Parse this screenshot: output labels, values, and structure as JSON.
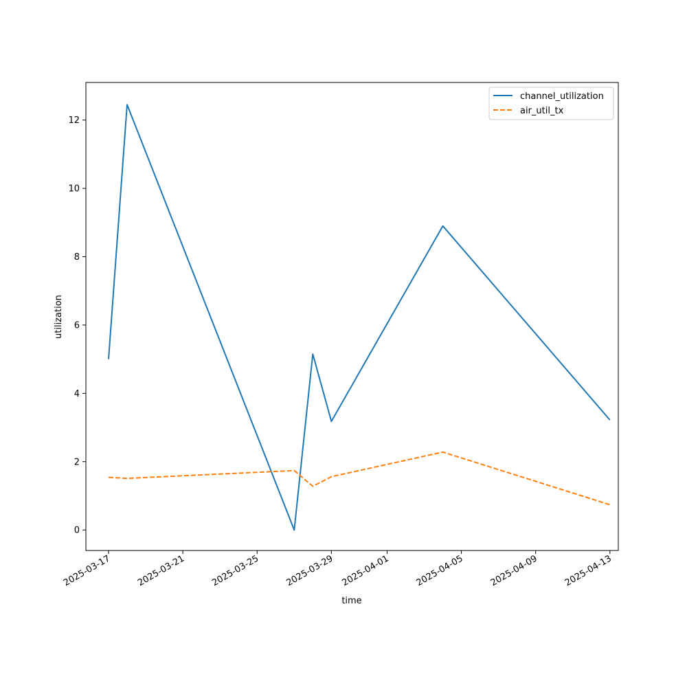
{
  "chart_data": {
    "type": "line",
    "title": "",
    "xlabel": "time",
    "ylabel": "utilization",
    "x_ticks": [
      "2025-03-17",
      "2025-03-21",
      "2025-03-25",
      "2025-03-29",
      "2025-04-01",
      "2025-04-05",
      "2025-04-09",
      "2025-04-13"
    ],
    "y_ticks": [
      0,
      2,
      4,
      6,
      8,
      10,
      12
    ],
    "xlim": [
      "2025-03-16",
      "2025-04-14"
    ],
    "ylim": [
      -0.6,
      13.1
    ],
    "grid": false,
    "legend_position": "top-right",
    "series": [
      {
        "name": "channel_utilization",
        "color": "#1f77b4",
        "style": "solid",
        "x": [
          "2025-03-17",
          "2025-03-18",
          "2025-03-27",
          "2025-03-28",
          "2025-03-29",
          "2025-04-04",
          "2025-04-13"
        ],
        "values": [
          5.0,
          12.45,
          0.0,
          5.15,
          3.18,
          8.9,
          3.22
        ]
      },
      {
        "name": "air_util_tx",
        "color": "#ff7f0e",
        "style": "dashed",
        "x": [
          "2025-03-17",
          "2025-03-18",
          "2025-03-27",
          "2025-03-28",
          "2025-03-29",
          "2025-04-04",
          "2025-04-13"
        ],
        "values": [
          1.54,
          1.51,
          1.74,
          1.28,
          1.56,
          2.28,
          0.74
        ]
      }
    ]
  }
}
